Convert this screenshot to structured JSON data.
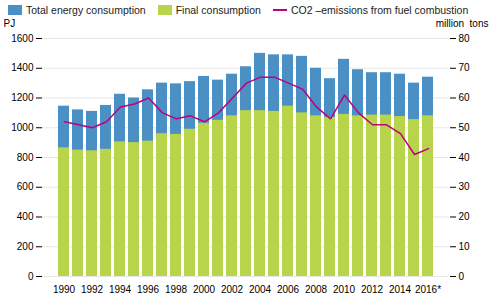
{
  "chart_data": {
    "type": "bar",
    "categories": [
      "1990",
      null,
      "1992",
      null,
      "1994",
      null,
      "1996",
      null,
      "1998",
      null,
      "2000",
      null,
      "2002",
      null,
      "2004",
      null,
      "2006",
      null,
      "2008",
      null,
      "2010",
      null,
      "2012",
      null,
      "2014",
      null,
      "2016*"
    ],
    "series": [
      {
        "name": "Total energy consumption",
        "type": "bar",
        "color": "#4a90c4",
        "values": [
          1145,
          1120,
          1110,
          1150,
          1225,
          1200,
          1255,
          1300,
          1295,
          1310,
          1345,
          1320,
          1360,
          1410,
          1500,
          1490,
          1490,
          1480,
          1400,
          1330,
          1460,
          1390,
          1370,
          1370,
          1360,
          1300,
          1340
        ]
      },
      {
        "name": "Final consumption",
        "type": "bar",
        "color": "#b8d44a",
        "values": [
          865,
          850,
          845,
          855,
          905,
          900,
          910,
          960,
          955,
          990,
          1030,
          1050,
          1080,
          1115,
          1115,
          1110,
          1145,
          1100,
          1080,
          1070,
          1090,
          1080,
          1085,
          1085,
          1075,
          1055,
          1080
        ]
      },
      {
        "name": "CO2 –emissions from fuel combustion",
        "type": "line",
        "color": "#c0007a",
        "axis": "y2",
        "values": [
          52,
          51,
          50,
          52,
          57,
          58,
          60,
          55,
          53,
          54,
          52,
          55,
          60,
          65,
          67,
          67,
          65,
          63,
          57,
          53,
          61,
          55,
          51,
          51,
          48,
          41,
          43
        ]
      }
    ],
    "stacked": false,
    "ylabel": "PJ",
    "y2label": "million  tons",
    "ylim": [
      0,
      1600
    ],
    "yticks": [
      0,
      200,
      400,
      600,
      800,
      1000,
      1200,
      1400,
      1600
    ],
    "y2lim": [
      0,
      80
    ],
    "y2ticks": [
      0,
      10,
      20,
      30,
      40,
      50,
      60,
      70,
      80
    ],
    "grid": true,
    "legend": "upper left"
  }
}
